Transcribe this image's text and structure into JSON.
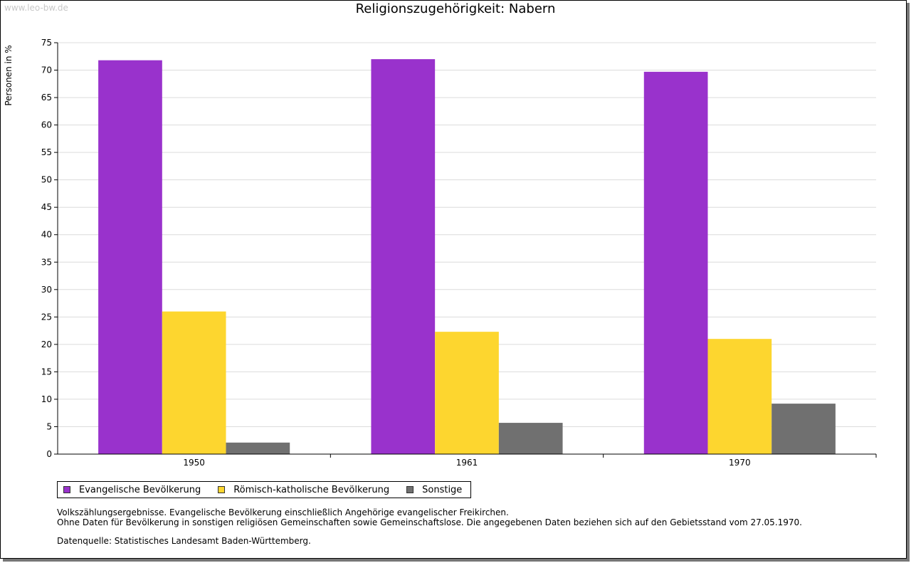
{
  "watermark": "www.leo-bw.de",
  "title": "Religionszugehörigkeit: Nabern",
  "colors": {
    "evangelisch": "#9932cc",
    "katholisch": "#fdd62f",
    "sonstige": "#707070"
  },
  "legend": [
    {
      "label": "Evangelische Bevölkerung",
      "color_key": "evangelisch"
    },
    {
      "label": "Römisch-katholische Bevölkerung",
      "color_key": "katholisch"
    },
    {
      "label": "Sonstige",
      "color_key": "sonstige"
    }
  ],
  "notes": {
    "line1": "Volkszählungsergebnisse. Evangelische Bevölkerung einschließlich Angehörige evangelischer Freikirchen.",
    "line2": "Ohne Daten für Bevölkerung in sonstigen religiösen Gemeinschaften sowie Gemeinschaftslose. Die angegebenen Daten beziehen sich auf den Gebietsstand vom 27.05.1970.",
    "source": "Datenquelle: Statistisches Landesamt Baden-Württemberg."
  },
  "chart_data": {
    "type": "bar",
    "title": "Religionszugehörigkeit: Nabern",
    "xlabel": "",
    "ylabel": "Personen in %",
    "categories": [
      "1950",
      "1961",
      "1970"
    ],
    "series": [
      {
        "name": "Evangelische Bevölkerung",
        "color_key": "evangelisch",
        "values": [
          71.8,
          72.0,
          69.7
        ]
      },
      {
        "name": "Römisch-katholische Bevölkerung",
        "color_key": "katholisch",
        "values": [
          26.0,
          22.3,
          21.0
        ]
      },
      {
        "name": "Sonstige",
        "color_key": "sonstige",
        "values": [
          2.1,
          5.7,
          9.2
        ]
      }
    ],
    "ylim": [
      0,
      75
    ],
    "yticks": [
      0,
      5,
      10,
      15,
      20,
      25,
      30,
      35,
      40,
      45,
      50,
      55,
      60,
      65,
      70,
      75
    ],
    "grid": true,
    "legend_position": "bottom-left"
  }
}
